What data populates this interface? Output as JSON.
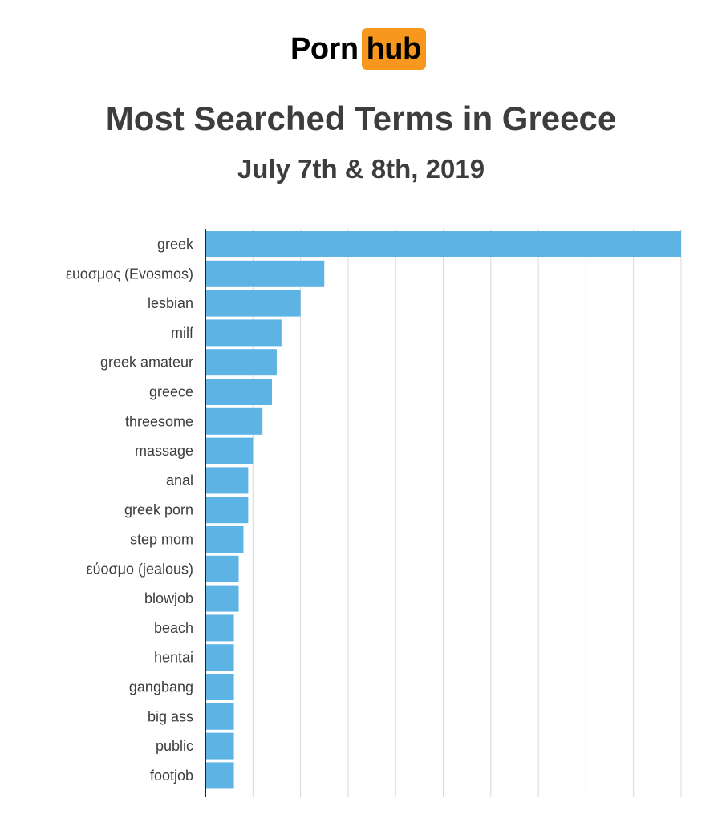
{
  "logo": {
    "word1": "Porn",
    "word2": "hub",
    "accent_color": "#f7971d"
  },
  "chart_data": {
    "type": "bar",
    "orientation": "horizontal",
    "title": "Most Searched Terms in Greece",
    "subtitle": "July 7th & 8th, 2019",
    "xlabel": "",
    "ylabel": "",
    "categories": [
      "greek",
      "ευοσμος (Evosmos)",
      "lesbian",
      "milf",
      "greek amateur",
      "greece",
      "threesome",
      "massage",
      "anal",
      "greek porn",
      "step mom",
      "εύοσμο (jealous)",
      "blowjob",
      "beach",
      "hentai",
      "gangbang",
      "big ass",
      "public",
      "footjob"
    ],
    "values": [
      100,
      25,
      20,
      16,
      15,
      14,
      12,
      10,
      9,
      9,
      8,
      7,
      7,
      6,
      6,
      6,
      6,
      6,
      6
    ],
    "xlim": [
      0,
      100
    ],
    "bar_color": "#5db4e4",
    "grid": true,
    "legend": "none"
  }
}
